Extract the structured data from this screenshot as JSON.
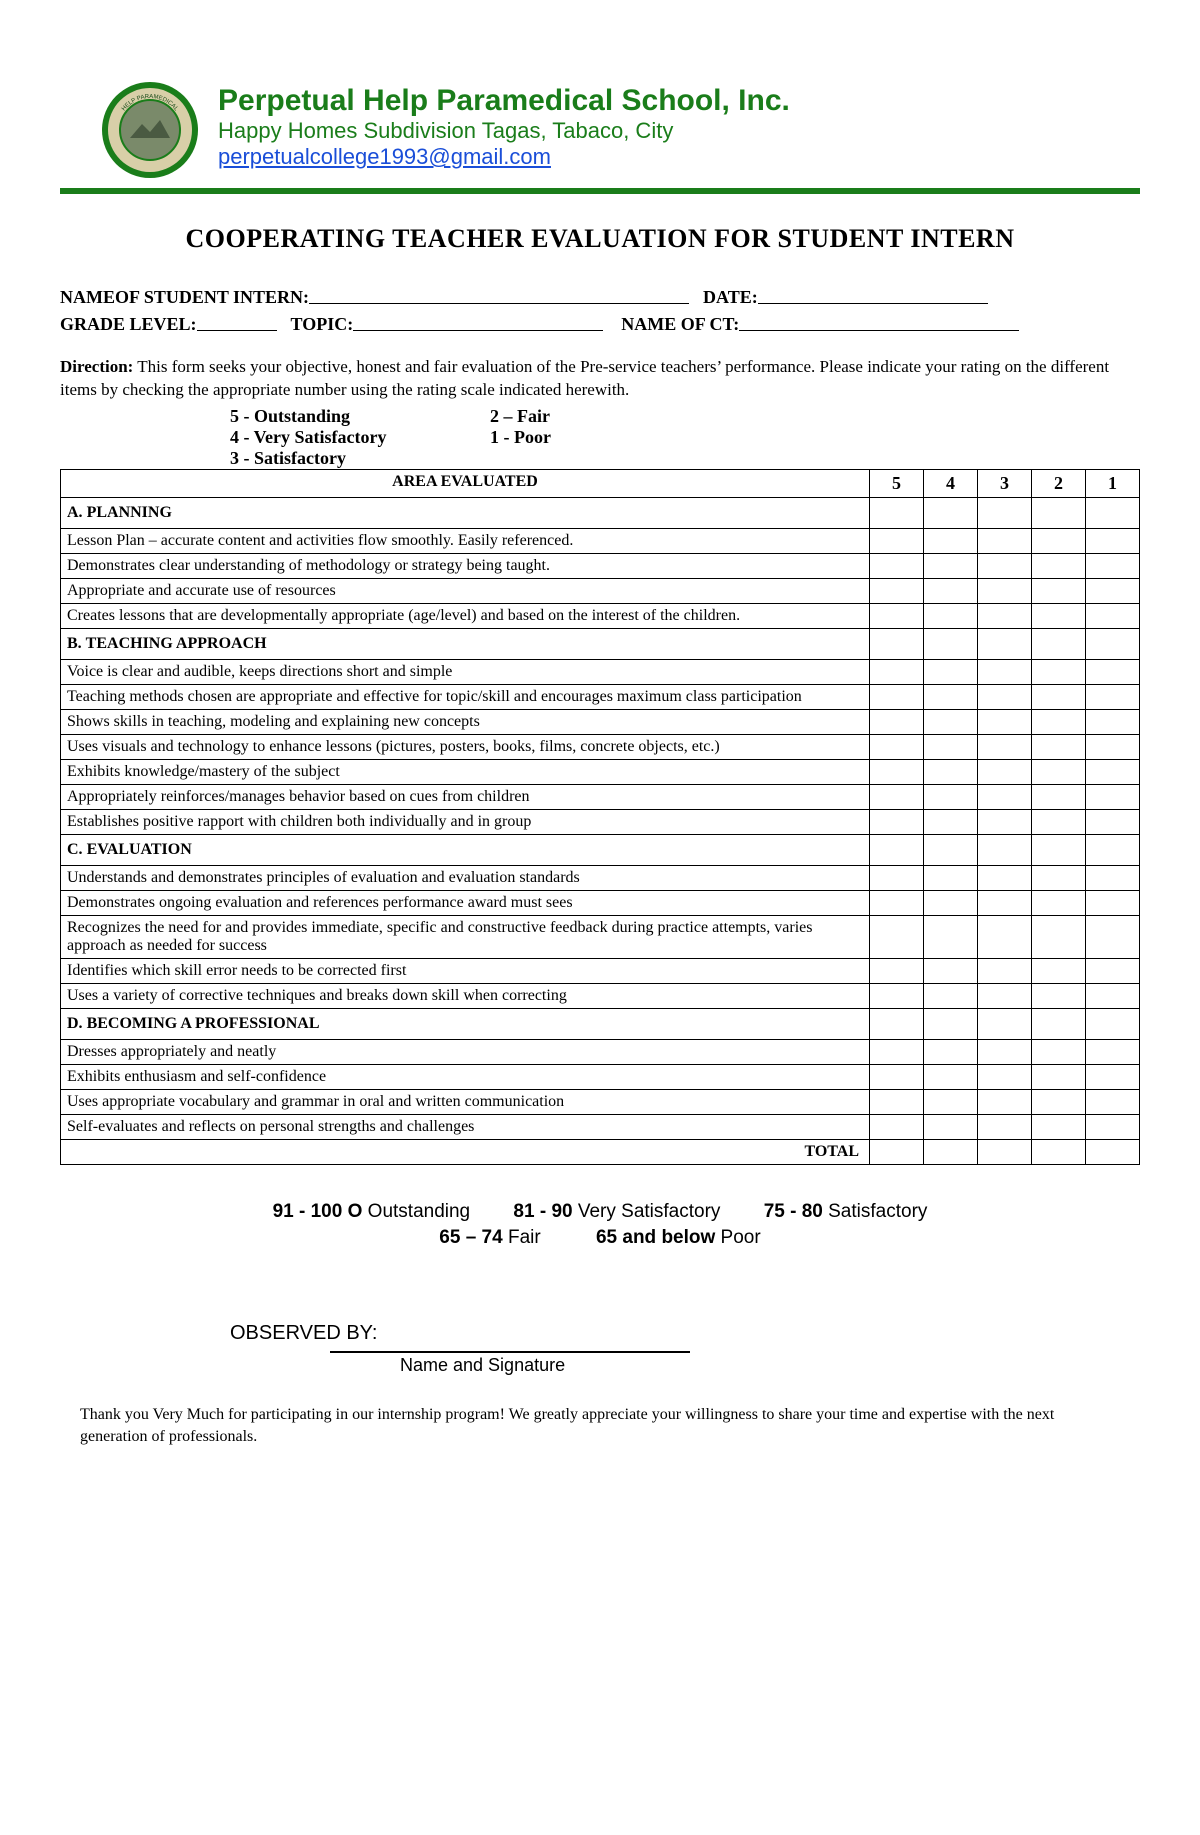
{
  "letterhead": {
    "school_name": "Perpetual Help Paramedical School, Inc.",
    "address": "Happy Homes Subdivision Tagas, Tabaco, City",
    "email": "perpetualcollege1993@gmail.com",
    "logo_ring_color": "#1a7d1a",
    "logo_band_color": "#d8cfa8",
    "hr_color": "#1a7d1a"
  },
  "doc_title": "COOPERATING TEACHER EVALUATION FOR STUDENT INTERN",
  "form_fields": {
    "name_label": "NAMEOF STUDENT INTERN:",
    "date_label": "DATE:",
    "grade_label": "GRADE LEVEL:",
    "topic_label": "TOPIC:",
    "ct_label": "NAME OF CT:"
  },
  "direction": {
    "label": "Direction:",
    "text": " This form seeks your objective, honest and fair evaluation of the Pre-service teachers’ performance. Please indicate your rating on the different items by checking the appropriate number using the rating scale indicated herewith."
  },
  "scale": [
    {
      "left": "5 - Outstanding",
      "right": "2 – Fair"
    },
    {
      "left": "4 - Very Satisfactory",
      "right": "1 - Poor"
    },
    {
      "left": "3 - Satisfactory",
      "right": ""
    }
  ],
  "table": {
    "area_header": "AREA EVALUATED",
    "cols": [
      "5",
      "4",
      "3",
      "2",
      "1"
    ],
    "sections": [
      {
        "letter": "A.",
        "title": "PLANNING",
        "items": [
          "Lesson Plan – accurate content and activities flow smoothly. Easily referenced.",
          "Demonstrates clear understanding of methodology or strategy being taught.",
          "Appropriate and accurate use of resources",
          "Creates lessons that are developmentally appropriate (age/level) and based on the interest of the children."
        ]
      },
      {
        "letter": "B.",
        "title": "TEACHING APPROACH",
        "items": [
          "Voice is clear and audible, keeps directions short and simple",
          "Teaching methods chosen are appropriate and effective for topic/skill and encourages maximum class participation",
          "Shows skills in teaching, modeling and explaining new concepts",
          "Uses visuals and technology to enhance lessons (pictures, posters, books, films, concrete objects, etc.)",
          "Exhibits knowledge/mastery of the subject",
          "Appropriately reinforces/manages behavior based on cues from children",
          "Establishes positive rapport with children both individually and in group"
        ]
      },
      {
        "letter": "C.",
        "title": "EVALUATION",
        "items": [
          "Understands and demonstrates principles of evaluation and evaluation standards",
          "Demonstrates ongoing evaluation and references performance award must sees",
          "Recognizes the need for and provides immediate, specific and constructive feedback during practice attempts, varies approach as needed for success",
          "Identifies which skill error needs to be corrected first",
          "Uses a variety of corrective techniques and breaks down skill when correcting"
        ]
      },
      {
        "letter": "D.",
        "title": "BECOMING A PROFESSIONAL",
        "items": [
          "Dresses appropriately and neatly",
          "Exhibits enthusiasm and self-confidence",
          "Uses appropriate vocabulary and grammar in oral and written communication",
          "Self-evaluates and reflects on personal strengths and challenges"
        ]
      }
    ],
    "total_label": "TOTAL"
  },
  "bands": {
    "line1": [
      {
        "range": "91 - 100",
        "label": " Outstanding",
        "lead": "O"
      },
      {
        "range": "81 - 90",
        "label": " Very Satisfactory"
      },
      {
        "range": "75 - 80",
        "label": " Satisfactory"
      }
    ],
    "line2": [
      {
        "range": "65 – 74",
        "label": " Fair"
      },
      {
        "range": "65 and below",
        "label": " Poor"
      }
    ]
  },
  "observed_label": "OBSERVED BY:",
  "sig_label": "Name and Signature",
  "thanks": "Thank you Very Much for participating in our internship program! We greatly appreciate your willingness to share your time and expertise with the next generation of professionals."
}
